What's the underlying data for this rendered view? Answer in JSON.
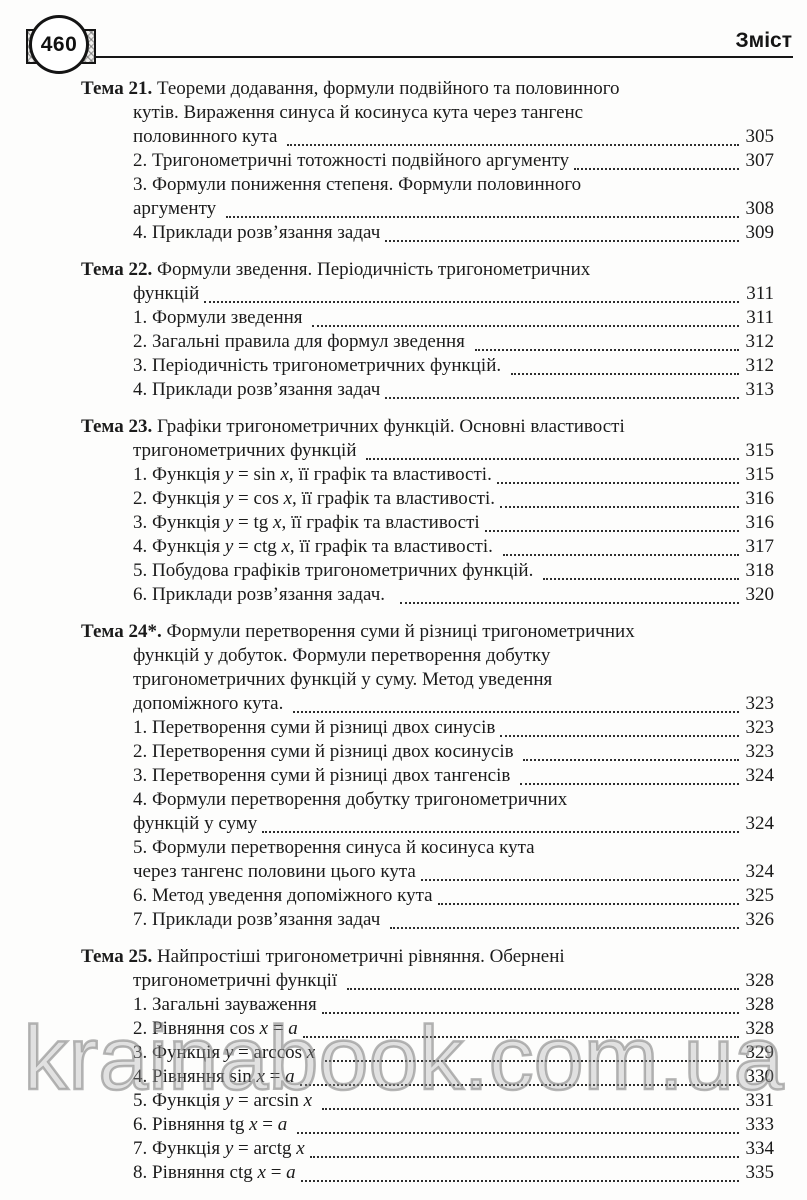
{
  "page": {
    "badge_number": "460",
    "header_title": "Зміст",
    "watermark": "krainabook.com.ua"
  },
  "toc": {
    "sections": [
      {
        "name": "tema-21",
        "lines": [
          {
            "type": "head",
            "runs": [
              {
                "t": "Тема 21.",
                "b": true
              },
              {
                "t": " Теореми додавання, формули подвійного та половинного"
              }
            ]
          },
          {
            "type": "sub",
            "runs": [
              {
                "t": "кутів. Вираження синуса й косинуса кута через тангенс"
              }
            ]
          },
          {
            "type": "sub",
            "runs": [
              {
                "t": "половинного кута "
              }
            ],
            "page": "305"
          },
          {
            "type": "sub",
            "runs": [
              {
                "t": "2. Тригонометричні тотожності подвійного аргументу"
              }
            ],
            "page": "307"
          },
          {
            "type": "sub",
            "runs": [
              {
                "t": "3. Формули пониження степеня. Формули половинного"
              }
            ]
          },
          {
            "type": "sub",
            "runs": [
              {
                "t": "аргументу "
              }
            ],
            "page": "308"
          },
          {
            "type": "sub",
            "runs": [
              {
                "t": "4. Приклади розв’язання задач"
              }
            ],
            "page": "309"
          }
        ]
      },
      {
        "name": "tema-22",
        "lines": [
          {
            "type": "head",
            "runs": [
              {
                "t": "Тема 22.",
                "b": true
              },
              {
                "t": " Формули зведення. Періодичність тригонометричних"
              }
            ]
          },
          {
            "type": "sub",
            "runs": [
              {
                "t": "функцій"
              }
            ],
            "page": "311"
          },
          {
            "type": "sub",
            "runs": [
              {
                "t": "1. Формули зведення "
              }
            ],
            "page": "311"
          },
          {
            "type": "sub",
            "runs": [
              {
                "t": "2. Загальні правила для формул зведення "
              }
            ],
            "page": "312"
          },
          {
            "type": "sub",
            "runs": [
              {
                "t": "3. Періодичність тригонометричних функцій. "
              }
            ],
            "page": "312"
          },
          {
            "type": "sub",
            "runs": [
              {
                "t": "4. Приклади розв’язання задач"
              }
            ],
            "page": "313"
          }
        ]
      },
      {
        "name": "tema-23",
        "lines": [
          {
            "type": "head",
            "runs": [
              {
                "t": "Тема 23.",
                "b": true
              },
              {
                "t": " Графіки тригонометричних функцій. Основні властивості"
              }
            ]
          },
          {
            "type": "sub",
            "runs": [
              {
                "t": "тригонометричних функцій "
              }
            ],
            "page": "315"
          },
          {
            "type": "sub",
            "runs": [
              {
                "t": "1. Функція "
              },
              {
                "t": "y",
                "i": true
              },
              {
                "t": " = sin "
              },
              {
                "t": "x",
                "i": true
              },
              {
                "t": ", її графік та властивості."
              }
            ],
            "page": "315"
          },
          {
            "type": "sub",
            "runs": [
              {
                "t": "2. Функція "
              },
              {
                "t": "y",
                "i": true
              },
              {
                "t": " = cos "
              },
              {
                "t": "x",
                "i": true
              },
              {
                "t": ", її графік та властивості."
              }
            ],
            "page": "316"
          },
          {
            "type": "sub",
            "runs": [
              {
                "t": "3. Функція "
              },
              {
                "t": "y",
                "i": true
              },
              {
                "t": " = tg "
              },
              {
                "t": "x",
                "i": true
              },
              {
                "t": ", її графік та властивості"
              }
            ],
            "page": "316"
          },
          {
            "type": "sub",
            "runs": [
              {
                "t": "4. Функція "
              },
              {
                "t": "y",
                "i": true
              },
              {
                "t": " = ctg "
              },
              {
                "t": "x",
                "i": true
              },
              {
                "t": ", її графік та властивості. "
              }
            ],
            "page": "317"
          },
          {
            "type": "sub",
            "runs": [
              {
                "t": "5. Побудова графіків тригонометричних функцій. "
              }
            ],
            "page": "318"
          },
          {
            "type": "sub",
            "runs": [
              {
                "t": "6. Приклади розв’язання задач.  "
              }
            ],
            "page": "320"
          }
        ]
      },
      {
        "name": "tema-24",
        "lines": [
          {
            "type": "head",
            "runs": [
              {
                "t": "Тема 24*.",
                "b": true
              },
              {
                "t": " Формули перетворення суми й різниці тригонометричних"
              }
            ]
          },
          {
            "type": "sub",
            "runs": [
              {
                "t": "функцій у добуток. Формули перетворення добутку"
              }
            ]
          },
          {
            "type": "sub",
            "runs": [
              {
                "t": "тригонометричних функцій у суму. Метод уведення"
              }
            ]
          },
          {
            "type": "sub",
            "runs": [
              {
                "t": "допоміжного кута. "
              }
            ],
            "page": "323"
          },
          {
            "type": "sub",
            "runs": [
              {
                "t": "1. Перетворення суми й різниці двох синусів"
              }
            ],
            "page": "323"
          },
          {
            "type": "sub",
            "runs": [
              {
                "t": "2. Перетворення суми й різниці двох косинусів "
              }
            ],
            "page": "323"
          },
          {
            "type": "sub",
            "runs": [
              {
                "t": "3. Перетворення суми й різниці двох тангенсів "
              }
            ],
            "page": "324"
          },
          {
            "type": "sub",
            "runs": [
              {
                "t": "4. Формули перетворення добутку тригонометричних"
              }
            ]
          },
          {
            "type": "sub",
            "runs": [
              {
                "t": "функцій у суму"
              }
            ],
            "page": "324"
          },
          {
            "type": "sub",
            "runs": [
              {
                "t": "5. Формули перетворення синуса й косинуса кута"
              }
            ]
          },
          {
            "type": "sub",
            "runs": [
              {
                "t": "через тангенс половини цього кута"
              }
            ],
            "page": "324"
          },
          {
            "type": "sub",
            "runs": [
              {
                "t": "6. Метод уведення допоміжного кута"
              }
            ],
            "page": "325"
          },
          {
            "type": "sub",
            "runs": [
              {
                "t": "7. Приклади розв’язання задач "
              }
            ],
            "page": "326"
          }
        ]
      },
      {
        "name": "tema-25",
        "lines": [
          {
            "type": "head",
            "runs": [
              {
                "t": "Тема 25.",
                "b": true
              },
              {
                "t": " Найпростіші тригонометричні рівняння. Обернені"
              }
            ]
          },
          {
            "type": "sub",
            "runs": [
              {
                "t": "тригонометричні функції "
              }
            ],
            "page": "328"
          },
          {
            "type": "sub",
            "runs": [
              {
                "t": "1. Загальні зауваження"
              }
            ],
            "page": "328"
          },
          {
            "type": "sub",
            "runs": [
              {
                "t": "2. Рівняння cos "
              },
              {
                "t": "x",
                "i": true
              },
              {
                "t": " = "
              },
              {
                "t": "a",
                "i": true
              }
            ],
            "page": "328"
          },
          {
            "type": "sub",
            "runs": [
              {
                "t": "3. Функція "
              },
              {
                "t": "y",
                "i": true
              },
              {
                "t": " = arccos "
              },
              {
                "t": "x",
                "i": true
              },
              {
                "t": " "
              }
            ],
            "page": "329"
          },
          {
            "type": "sub",
            "runs": [
              {
                "t": "4. Рівняння sin "
              },
              {
                "t": "x",
                "i": true
              },
              {
                "t": " = "
              },
              {
                "t": "a",
                "i": true
              }
            ],
            "page": "330"
          },
          {
            "type": "sub",
            "runs": [
              {
                "t": "5. Функція "
              },
              {
                "t": "y",
                "i": true
              },
              {
                "t": " = arcsin "
              },
              {
                "t": "x",
                "i": true
              },
              {
                "t": " "
              }
            ],
            "page": "331"
          },
          {
            "type": "sub",
            "runs": [
              {
                "t": "6. Рівняння tg "
              },
              {
                "t": "x",
                "i": true
              },
              {
                "t": " = "
              },
              {
                "t": "a",
                "i": true
              },
              {
                "t": " "
              }
            ],
            "page": "333"
          },
          {
            "type": "sub",
            "runs": [
              {
                "t": "7. Функція "
              },
              {
                "t": "y",
                "i": true
              },
              {
                "t": " = arctg "
              },
              {
                "t": "x",
                "i": true
              }
            ],
            "page": "334"
          },
          {
            "type": "sub",
            "runs": [
              {
                "t": "8. Рівняння ctg "
              },
              {
                "t": "x",
                "i": true
              },
              {
                "t": " = "
              },
              {
                "t": "a",
                "i": true
              }
            ],
            "page": "335"
          }
        ]
      }
    ]
  }
}
